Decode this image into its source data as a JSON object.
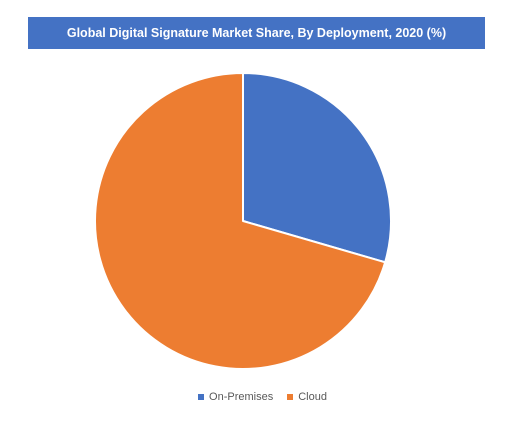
{
  "chart_data": {
    "type": "pie",
    "title": "Global Digital Signature Market Share, By Deployment, 2020 (%)",
    "categories": [
      "On-Premises",
      "Cloud"
    ],
    "values": [
      29.5,
      70.5
    ],
    "colors": [
      "#4472c4",
      "#ed7d31"
    ],
    "legend_position": "bottom",
    "start": "top",
    "direction": "clockwise"
  }
}
